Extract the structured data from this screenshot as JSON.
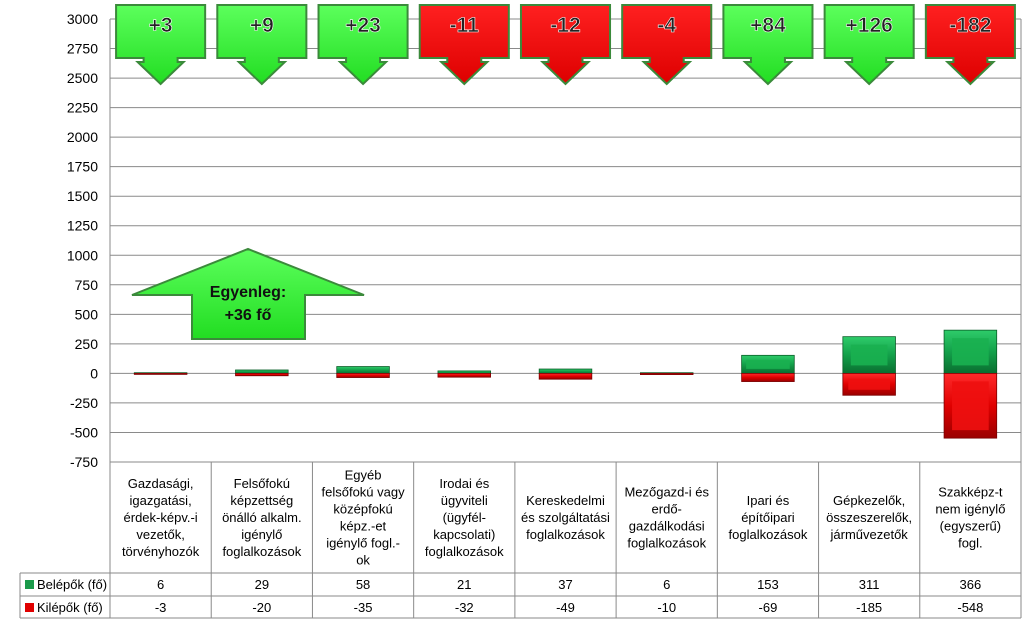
{
  "chart_data": {
    "type": "bar",
    "stacked": true,
    "ylim": [
      -750,
      3000
    ],
    "y_ticks": [
      3000,
      2750,
      2500,
      2250,
      2000,
      1750,
      1500,
      1250,
      1000,
      750,
      500,
      250,
      0,
      -250,
      -500,
      -750
    ],
    "grid": true,
    "categories": [
      [
        "Gazdasági,",
        "igazgatási,",
        "érdek-képv.-i",
        "vezetők,",
        "törvényhozók"
      ],
      [
        "Felsőfokú",
        "képzettség",
        "önálló alkalm.",
        "igénylő",
        "foglalkozások"
      ],
      [
        "Egyéb",
        "felsőfokú vagy",
        "középfokú",
        "képz.-et",
        "igénylő fogl.-",
        "ok"
      ],
      [
        "Irodai és",
        "ügyviteli",
        "(ügyfél-",
        "kapcsolati)",
        "foglalkozások"
      ],
      [
        "Kereskedelmi",
        "és szolgáltatási",
        "foglalkozások"
      ],
      [
        "Mezőgazd-i és",
        "erdő-",
        "gazdálkodási",
        "foglalkozások"
      ],
      [
        "Ipari és",
        "építőipari",
        "foglalkozások"
      ],
      [
        "Gépkezelők,",
        "összeszerelők,",
        "járművezetők"
      ],
      [
        "Szakképz-t",
        "nem igénylő",
        "(egyszerű)",
        "fogl."
      ]
    ],
    "series": [
      {
        "name": "Belépők (fő)",
        "color": "#1a9a4a",
        "values": [
          6,
          29,
          58,
          21,
          37,
          6,
          153,
          311,
          366
        ],
        "labels": [
          "6",
          "29",
          "58",
          "21",
          "37",
          "6",
          "153",
          "311",
          "366"
        ]
      },
      {
        "name": "Kilépők (fő)",
        "color": "#e00000",
        "values": [
          -3,
          -20,
          -35,
          -32,
          -49,
          -10,
          -69,
          -185,
          -548
        ],
        "labels": [
          "-3",
          "-20",
          "-35",
          "-32",
          "-49",
          "-10",
          "-69",
          "-185",
          "-548"
        ]
      }
    ],
    "balance_arrows": [
      {
        "text": "+3",
        "direction": "down",
        "color": "green"
      },
      {
        "text": "+9",
        "direction": "down",
        "color": "green"
      },
      {
        "text": "+23",
        "direction": "down",
        "color": "green"
      },
      {
        "text": "-11",
        "direction": "down",
        "color": "red"
      },
      {
        "text": "-12",
        "direction": "down",
        "color": "red"
      },
      {
        "text": "-4",
        "direction": "down",
        "color": "red"
      },
      {
        "text": "+84",
        "direction": "down",
        "color": "green"
      },
      {
        "text": "+126",
        "direction": "down",
        "color": "green"
      },
      {
        "text": "-182",
        "direction": "down",
        "color": "red"
      }
    ],
    "annotation": {
      "lines": [
        "Egyenleg:",
        "+36 fő"
      ],
      "direction": "up",
      "color": "green"
    }
  }
}
